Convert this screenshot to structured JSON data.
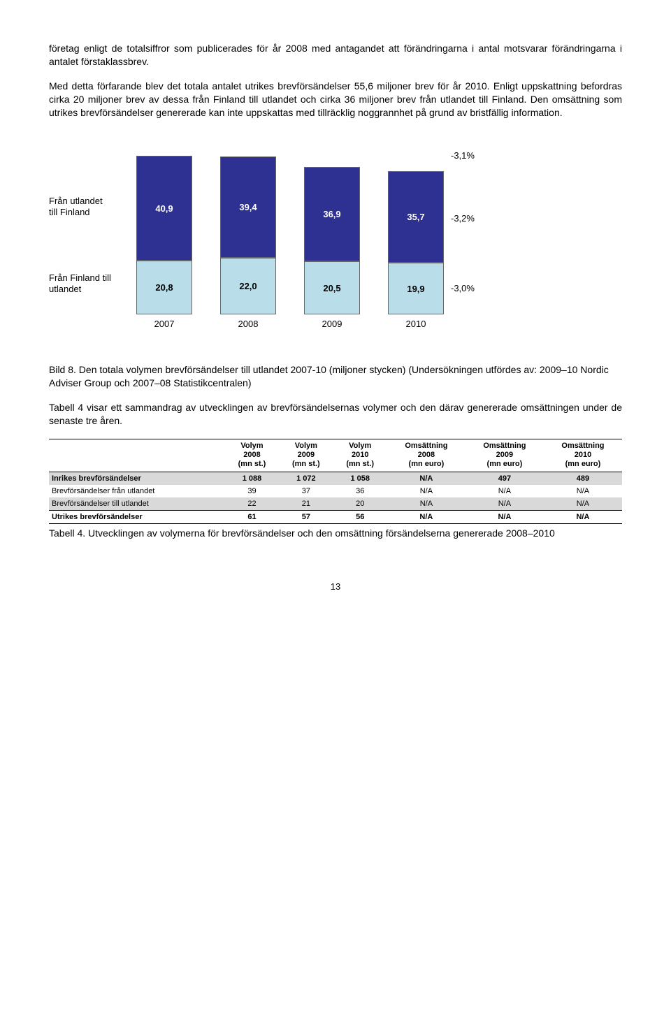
{
  "para1": "företag enligt de totalsiffror som publicerades för år 2008 med antagandet att förändringarna i antal motsvarar förändringarna i antalet förstaklassbrev.",
  "para2": "Med detta förfarande blev det totala antalet utrikes brevförsändelser 55,6 miljoner brev för år 2010. Enligt uppskattning befordras cirka 20 miljoner brev av dessa från Finland till utlandet och cirka 36 miljoner brev från utlandet till Finland. Den omsättning som utrikes brevförsändelser genererade kan inte uppskattas med tillräcklig noggrannhet på grund av bristfällig information.",
  "chart": {
    "type": "stacked-bar",
    "categories": [
      "2007",
      "2008",
      "2009",
      "2010"
    ],
    "top_series": {
      "label_line1": "Från utlandet",
      "label_line2": "till Finland",
      "values": [
        "40,9",
        "39,4",
        "36,9",
        "35,7"
      ],
      "heights": [
        150,
        145,
        135,
        131
      ],
      "color": "#2e3192",
      "text_color": "#ffffff"
    },
    "bottom_series": {
      "label_line1": "Från Finland till",
      "label_line2": "utlandet",
      "values": [
        "20,8",
        "22,0",
        "20,5",
        "19,9"
      ],
      "heights": [
        77,
        81,
        76,
        74
      ],
      "color": "#b9dde9",
      "text_color": "#000000"
    },
    "pct_total": "-3,1%",
    "pct_top": "-3,2%",
    "pct_bottom": "-3,0%",
    "background_color": "#ffffff"
  },
  "caption1": "Bild 8. Den totala volymen brevförsändelser till utlandet 2007-10 (miljoner stycken) (Undersökningen utfördes av: 2009–10 Nordic Adviser Group och 2007–08 Statistikcentralen)",
  "para3": "Tabell 4 visar ett sammandrag av utvecklingen av brevförsändelsernas volymer och den därav genererade omsättningen under de senaste tre åren.",
  "table": {
    "headers": [
      "",
      "Volym 2008 (mn st.)",
      "Volym 2009 (mn st.)",
      "Volym 2010 (mn st.)",
      "Omsättning 2008 (mn euro)",
      "Omsättning 2009 (mn euro)",
      "Omsättning 2010 (mn euro)"
    ],
    "h": {
      "c1a": "Volym",
      "c1b": "2008",
      "c1c": "(mn st.)",
      "c2a": "Volym",
      "c2b": "2009",
      "c2c": "(mn st.)",
      "c3a": "Volym",
      "c3b": "2010",
      "c3c": "(mn st.)",
      "c4a": "Omsättning",
      "c4b": "2008",
      "c4c": "(mn euro)",
      "c5a": "Omsättning",
      "c5b": "2009",
      "c5c": "(mn euro)",
      "c6a": "Omsättning",
      "c6b": "2010",
      "c6c": "(mn euro)"
    },
    "rows": [
      {
        "label": "Inrikes brevförsändelser",
        "v": [
          "1 088",
          "1 072",
          "1 058",
          "N/A",
          "497",
          "489"
        ],
        "grey": true,
        "bold": true
      },
      {
        "label": "Brevförsändelser från utlandet",
        "v": [
          "39",
          "37",
          "36",
          "N/A",
          "N/A",
          "N/A"
        ],
        "grey": false,
        "bold": false
      },
      {
        "label": "Brevförsändelser till utlandet",
        "v": [
          "22",
          "21",
          "20",
          "N/A",
          "N/A",
          "N/A"
        ],
        "grey": true,
        "bold": false
      },
      {
        "label": "Utrikes brevförsändelser",
        "v": [
          "61",
          "57",
          "56",
          "N/A",
          "N/A",
          "N/A"
        ],
        "grey": false,
        "bold": true
      }
    ]
  },
  "caption2": "Tabell 4. Utvecklingen av volymerna för brevförsändelser och den omsättning försändelserna genererade 2008–2010",
  "pagenum": "13"
}
